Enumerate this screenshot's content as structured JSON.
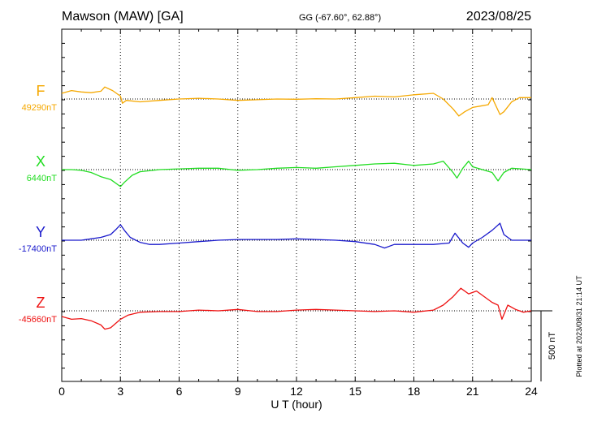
{
  "header": {
    "station": "Mawson (MAW)  [GA]",
    "coords": "GG (-67.60°,  62.88°)",
    "date": "2023/08/25"
  },
  "footer": {
    "plotted": "Plotted at 2023/08/31 21:14 UT"
  },
  "chart_data": {
    "type": "line",
    "title": "Mawson (MAW)  [GA]",
    "xlabel": "U T (hour)",
    "xlim": [
      0,
      24
    ],
    "xticks": [
      "0",
      "3",
      "6",
      "9",
      "12",
      "15",
      "18",
      "21",
      "24"
    ],
    "grid": true,
    "scale_bar": {
      "label": "500 nT",
      "value_nT": 500
    },
    "series": [
      {
        "name": "F",
        "baseline_label": "49290nT",
        "baseline": 49290,
        "color": "#f5a800",
        "x": [
          0,
          0.5,
          1,
          1.5,
          2,
          2.2,
          2.6,
          3,
          3.1,
          3.3,
          4,
          5,
          6,
          7,
          8,
          9,
          10,
          11,
          12,
          13,
          14,
          15,
          16,
          17,
          18,
          19,
          19.5,
          20,
          20.3,
          20.6,
          21,
          21.4,
          21.8,
          22,
          22.4,
          22.6,
          23,
          23.4,
          24
        ],
        "y": [
          49330,
          49350,
          49340,
          49335,
          49345,
          49375,
          49350,
          49310,
          49260,
          49280,
          49270,
          49280,
          49290,
          49295,
          49290,
          49280,
          49285,
          49290,
          49288,
          49292,
          49290,
          49300,
          49310,
          49305,
          49320,
          49330,
          49290,
          49220,
          49170,
          49200,
          49230,
          49240,
          49250,
          49300,
          49180,
          49200,
          49270,
          49300,
          49300
        ]
      },
      {
        "name": "X",
        "baseline_label": "6440nT",
        "baseline": 6440,
        "color": "#22dd22",
        "x": [
          0,
          0.5,
          1,
          1.5,
          2,
          2.5,
          3,
          3.2,
          3.6,
          4,
          5,
          6,
          7,
          8,
          9,
          10,
          11,
          12,
          13,
          14,
          15,
          16,
          17,
          18,
          19,
          19.5,
          20,
          20.2,
          20.5,
          20.8,
          21,
          21.5,
          22,
          22.3,
          22.6,
          23,
          24
        ],
        "y": [
          6440,
          6440,
          6435,
          6420,
          6390,
          6370,
          6320,
          6350,
          6400,
          6425,
          6440,
          6445,
          6450,
          6450,
          6435,
          6440,
          6450,
          6455,
          6450,
          6460,
          6470,
          6480,
          6485,
          6470,
          6480,
          6500,
          6420,
          6380,
          6450,
          6500,
          6460,
          6440,
          6420,
          6360,
          6420,
          6450,
          6440
        ]
      },
      {
        "name": "Y",
        "baseline_label": "-17400nT",
        "baseline": -17400,
        "color": "#1a1acc",
        "x": [
          0,
          1,
          1.5,
          2,
          2.5,
          2.8,
          3,
          3.2,
          3.5,
          4,
          4.5,
          5,
          6,
          7,
          8,
          9,
          10,
          11,
          12,
          13,
          14,
          15,
          16,
          16.5,
          17,
          18,
          19,
          19.8,
          20.1,
          20.5,
          20.8,
          21,
          21.5,
          22,
          22.4,
          22.6,
          23,
          24
        ],
        "y": [
          -17400,
          -17400,
          -17390,
          -17380,
          -17360,
          -17320,
          -17290,
          -17330,
          -17380,
          -17415,
          -17430,
          -17430,
          -17420,
          -17410,
          -17400,
          -17395,
          -17395,
          -17395,
          -17390,
          -17395,
          -17400,
          -17410,
          -17430,
          -17455,
          -17430,
          -17430,
          -17430,
          -17420,
          -17350,
          -17420,
          -17450,
          -17420,
          -17380,
          -17330,
          -17280,
          -17360,
          -17400,
          -17400
        ]
      },
      {
        "name": "Z",
        "baseline_label": "-45660nT",
        "baseline": -45660,
        "color": "#ee1111",
        "x": [
          0,
          0.5,
          1,
          1.5,
          2,
          2.2,
          2.5,
          3,
          3.4,
          4,
          5,
          6,
          7,
          8,
          9,
          10,
          11,
          12,
          13,
          14,
          15,
          16,
          17,
          18,
          19,
          19.5,
          20,
          20.4,
          20.8,
          21.2,
          21.6,
          22,
          22.3,
          22.5,
          22.8,
          23.2,
          23.6,
          24
        ],
        "y": [
          -45700,
          -45720,
          -45715,
          -45730,
          -45760,
          -45790,
          -45780,
          -45720,
          -45690,
          -45670,
          -45665,
          -45665,
          -45655,
          -45660,
          -45650,
          -45665,
          -45665,
          -45655,
          -45650,
          -45655,
          -45660,
          -45665,
          -45660,
          -45670,
          -45655,
          -45620,
          -45560,
          -45500,
          -45540,
          -45520,
          -45560,
          -45600,
          -45620,
          -45720,
          -45620,
          -45650,
          -45670,
          -45660
        ]
      }
    ]
  }
}
